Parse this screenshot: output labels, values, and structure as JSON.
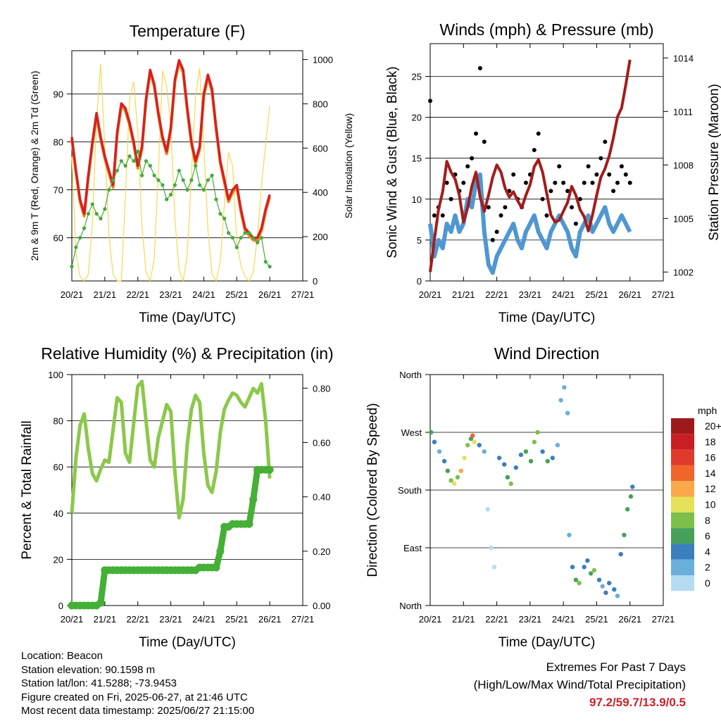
{
  "colors": {
    "temp_red": "#d62020",
    "temp_orange": "#f28a1e",
    "dewpoint_green": "#44aa3c",
    "solar_yellow": "#f5d442",
    "wind_blue": "#4f97d2",
    "gust_black": "#000000",
    "pressure_maroon": "#a31c1c",
    "rh_green": "#8cc84b",
    "precip_green": "#44b035",
    "extremes_red": "#cc2229"
  },
  "time_ticks": [
    "20/21",
    "21/21",
    "22/21",
    "23/21",
    "24/21",
    "25/21",
    "26/21",
    "27/21"
  ],
  "chart_data": [
    {
      "type": "line",
      "title": "Temperature (F)",
      "xlabel": "Time (Day/UTC)",
      "ylabel": "2m & 9m T (Red, Orange) & 2m Td (Green)",
      "y2label": "Solar Insolation (Yellow)",
      "ylim": [
        51,
        99
      ],
      "y2lim": [
        0,
        1040
      ],
      "yticks": [
        60,
        70,
        80,
        90
      ],
      "y2ticks": [
        0,
        200,
        400,
        600,
        800,
        1000
      ],
      "x": [
        20.875,
        21.0,
        21.125,
        21.25,
        21.375,
        21.5,
        21.625,
        21.75,
        21.875,
        22.0,
        22.125,
        22.25,
        22.375,
        22.5,
        22.625,
        22.75,
        22.875,
        23.0,
        23.125,
        23.25,
        23.375,
        23.5,
        23.625,
        23.75,
        23.875,
        24.0,
        24.125,
        24.25,
        24.375,
        24.5,
        24.625,
        24.75,
        24.875,
        25.0,
        25.125,
        25.25,
        25.375,
        25.5,
        25.625,
        25.75,
        25.875,
        26.0,
        26.125,
        26.25,
        26.375,
        26.5,
        26.625,
        26.75,
        26.875
      ],
      "series": [
        {
          "name": "2m T",
          "values": [
            81,
            74,
            68,
            65,
            73,
            80,
            86,
            81,
            77,
            74,
            71,
            82,
            88,
            87,
            84,
            80,
            75,
            79,
            89,
            95,
            92,
            86,
            81,
            78,
            83,
            93,
            97,
            95,
            87,
            80,
            76,
            79,
            90,
            94,
            91,
            83,
            76,
            72,
            68,
            70,
            71,
            66,
            62,
            61,
            60,
            60,
            62,
            66,
            69
          ]
        },
        {
          "name": "9m T",
          "values": [
            80.5,
            73.5,
            67.5,
            64.5,
            72.5,
            79.5,
            85.5,
            80.5,
            76.5,
            73.5,
            70.5,
            81.5,
            87.5,
            86.5,
            83.5,
            79.5,
            74.5,
            78.5,
            88.5,
            94.5,
            91.5,
            85.5,
            80.5,
            77.5,
            82.5,
            92.5,
            96.5,
            94.5,
            86.5,
            79.5,
            75.5,
            78.5,
            89.5,
            93.5,
            90.5,
            82.5,
            75.5,
            71.5,
            67.5,
            69.5,
            70.5,
            65.5,
            61.5,
            60.5,
            59.5,
            59.5,
            61.5,
            65.5,
            68.5
          ]
        },
        {
          "name": "2m Td",
          "values": [
            54,
            58,
            60,
            62,
            65,
            67,
            65,
            64,
            66,
            70,
            72,
            74,
            76,
            75,
            77,
            76,
            78,
            73,
            76,
            75,
            73,
            72,
            71,
            68,
            69,
            71,
            74,
            72,
            70,
            72,
            75,
            71,
            70,
            72,
            73,
            68,
            65,
            64,
            61,
            60,
            58,
            60,
            61,
            61,
            60,
            59,
            60,
            55,
            54
          ]
        },
        {
          "name": "Solar Insolation",
          "values": [
            560,
            120,
            20,
            0,
            30,
            260,
            720,
            980,
            600,
            210,
            30,
            0,
            0,
            380,
            820,
            900,
            670,
            250,
            40,
            0,
            100,
            500,
            950,
            880,
            700,
            280,
            50,
            0,
            120,
            480,
            830,
            960,
            620,
            230,
            30,
            0,
            90,
            350,
            580,
            520,
            180,
            70,
            20,
            0,
            40,
            200,
            430,
            620,
            790
          ]
        }
      ]
    },
    {
      "type": "line",
      "title": "Winds (mph) & Pressure (mb)",
      "xlabel": "Time (Day/UTC)",
      "ylabel": "Sonic Wind & Gust (Blue, Black)",
      "y2label": "Station Pressure (Maroon)",
      "ylim": [
        0,
        29
      ],
      "y2lim": [
        1001.5,
        1014.8
      ],
      "yticks": [
        0,
        5,
        10,
        15,
        20,
        25
      ],
      "y2ticks": [
        1002,
        1005,
        1008,
        1011,
        1014
      ],
      "x": [
        20.875,
        21.0,
        21.125,
        21.25,
        21.375,
        21.5,
        21.625,
        21.75,
        21.875,
        22.0,
        22.125,
        22.25,
        22.375,
        22.5,
        22.625,
        22.75,
        22.875,
        23.0,
        23.125,
        23.25,
        23.375,
        23.5,
        23.625,
        23.75,
        23.875,
        24.0,
        24.125,
        24.25,
        24.375,
        24.5,
        24.625,
        24.75,
        24.875,
        25.0,
        25.125,
        25.25,
        25.375,
        25.5,
        25.625,
        25.75,
        25.875,
        26.0,
        26.125,
        26.25,
        26.375,
        26.5,
        26.625,
        26.75,
        26.875
      ],
      "series": [
        {
          "name": "Sonic Wind",
          "values": [
            7,
            3,
            5,
            4,
            7,
            6,
            8,
            6,
            7,
            10,
            9,
            12,
            13,
            6,
            2,
            1,
            3,
            4,
            5,
            6,
            7,
            5,
            4,
            6,
            7,
            8,
            6,
            5,
            4,
            6,
            7,
            8,
            7,
            6,
            4,
            3,
            6,
            7,
            8,
            6,
            7,
            8,
            9,
            7,
            6,
            7,
            8,
            7,
            6
          ]
        },
        {
          "name": "Gust",
          "values": [
            22,
            8,
            9,
            8,
            12,
            10,
            13,
            11,
            12,
            14,
            15,
            18,
            26,
            17,
            9,
            5,
            6,
            8,
            9,
            11,
            13,
            10,
            9,
            12,
            13,
            16,
            18,
            10,
            8,
            11,
            12,
            14,
            12,
            11,
            9,
            7,
            10,
            12,
            14,
            12,
            13,
            15,
            17,
            13,
            11,
            12,
            14,
            13,
            12
          ]
        },
        {
          "name": "Station Pressure",
          "values": [
            1002.0,
            1003.8,
            1005.5,
            1006.5,
            1008.2,
            1007.6,
            1007.2,
            1006.3,
            1004.8,
            1005.6,
            1006.8,
            1007.6,
            1006.2,
            1005.4,
            1006.3,
            1007.3,
            1008.0,
            1007.6,
            1006.7,
            1006.2,
            1006.5,
            1006.0,
            1005.6,
            1006.3,
            1006.9,
            1007.9,
            1008.3,
            1007.6,
            1006.4,
            1005.2,
            1004.8,
            1004.9,
            1005.4,
            1005.9,
            1006.8,
            1006.3,
            1005.5,
            1005.1,
            1004.3,
            1005.2,
            1006.3,
            1007.3,
            1007.8,
            1008.5,
            1009.5,
            1010.7,
            1011.2,
            1012.5,
            1013.9
          ]
        }
      ]
    },
    {
      "type": "line",
      "title": "Relative Humidity (%) & Precipitation (in)",
      "xlabel": "Time (Day/UTC)",
      "ylabel": "Percent & Total Rainfall",
      "ylim": [
        0,
        100
      ],
      "y2lim": [
        0,
        0.85
      ],
      "yticks": [
        0,
        20,
        40,
        60,
        80,
        100
      ],
      "y2ticks": [
        "0.00",
        "0.20",
        "0.40",
        "0.60",
        "0.80"
      ],
      "x": [
        20.875,
        21.0,
        21.125,
        21.25,
        21.375,
        21.5,
        21.625,
        21.75,
        21.875,
        22.0,
        22.125,
        22.25,
        22.375,
        22.5,
        22.625,
        22.75,
        22.875,
        23.0,
        23.125,
        23.25,
        23.375,
        23.5,
        23.625,
        23.75,
        23.875,
        24.0,
        24.125,
        24.25,
        24.375,
        24.5,
        24.625,
        24.75,
        24.875,
        25.0,
        25.125,
        25.25,
        25.375,
        25.5,
        25.625,
        25.75,
        25.875,
        26.0,
        26.125,
        26.25,
        26.375,
        26.5,
        26.625,
        26.75,
        26.875
      ],
      "series": [
        {
          "name": "Relative Humidity",
          "values": [
            40,
            64,
            78,
            83,
            68,
            57,
            54,
            59,
            63,
            62,
            76,
            90,
            88,
            66,
            62,
            79,
            95,
            97,
            80,
            63,
            60,
            73,
            80,
            87,
            84,
            58,
            38,
            46,
            70,
            85,
            91,
            88,
            66,
            52,
            49,
            58,
            75,
            85,
            89,
            92,
            91,
            88,
            86,
            90,
            94,
            92,
            96,
            80,
            55
          ]
        },
        {
          "name": "Total Rainfall",
          "values": [
            0,
            0,
            0,
            0,
            0,
            0,
            0,
            0.01,
            0.13,
            0.13,
            0.13,
            0.13,
            0.13,
            0.13,
            0.13,
            0.13,
            0.13,
            0.13,
            0.13,
            0.13,
            0.13,
            0.13,
            0.13,
            0.13,
            0.13,
            0.13,
            0.13,
            0.13,
            0.13,
            0.13,
            0.13,
            0.14,
            0.14,
            0.14,
            0.14,
            0.14,
            0.2,
            0.29,
            0.29,
            0.3,
            0.3,
            0.3,
            0.3,
            0.3,
            0.39,
            0.5,
            0.5,
            0.5,
            0.5
          ]
        }
      ]
    },
    {
      "type": "scatter",
      "title": "Wind Direction",
      "xlabel": "Time (Day/UTC)",
      "ylabel": "Direction (Colored By Speed)",
      "ylim": [
        0,
        360
      ],
      "yticks": [
        "North",
        "East",
        "South",
        "West",
        "North"
      ],
      "ytick_values": [
        0,
        90,
        180,
        270,
        360
      ],
      "legend_title": "mph",
      "legend_labels": [
        "20+",
        "18",
        "16",
        "14",
        "12",
        "10",
        "8",
        "6",
        "4",
        "2",
        "0"
      ],
      "legend_colors": [
        "#9e1a1a",
        "#c71f23",
        "#e03a2c",
        "#f0652a",
        "#f9a84b",
        "#e4e158",
        "#7cbf4a",
        "#46a05a",
        "#3b7fbd",
        "#6aaedc",
        "#b6dcf2"
      ],
      "points": [
        {
          "x": 20.9,
          "dir": 270,
          "speed": 6
        },
        {
          "x": 21.0,
          "dir": 255,
          "speed": 4
        },
        {
          "x": 21.15,
          "dir": 240,
          "speed": 3
        },
        {
          "x": 21.3,
          "dir": 225,
          "speed": 4
        },
        {
          "x": 21.4,
          "dir": 210,
          "speed": 6
        },
        {
          "x": 21.5,
          "dir": 195,
          "speed": 8
        },
        {
          "x": 21.6,
          "dir": 190,
          "speed": 10
        },
        {
          "x": 21.7,
          "dir": 200,
          "speed": 9
        },
        {
          "x": 21.8,
          "dir": 210,
          "speed": 12
        },
        {
          "x": 21.9,
          "dir": 230,
          "speed": 11
        },
        {
          "x": 22.0,
          "dir": 250,
          "speed": 8
        },
        {
          "x": 22.1,
          "dir": 260,
          "speed": 6
        },
        {
          "x": 22.15,
          "dir": 265,
          "speed": 14
        },
        {
          "x": 22.2,
          "dir": 255,
          "speed": 10
        },
        {
          "x": 22.35,
          "dir": 250,
          "speed": 4
        },
        {
          "x": 22.5,
          "dir": 240,
          "speed": 3
        },
        {
          "x": 22.6,
          "dir": 150,
          "speed": 1
        },
        {
          "x": 22.7,
          "dir": 90,
          "speed": 1
        },
        {
          "x": 22.8,
          "dir": 60,
          "speed": 1
        },
        {
          "x": 22.95,
          "dir": 230,
          "speed": 4
        },
        {
          "x": 23.1,
          "dir": 220,
          "speed": 5
        },
        {
          "x": 23.2,
          "dir": 200,
          "speed": 7
        },
        {
          "x": 23.3,
          "dir": 190,
          "speed": 8
        },
        {
          "x": 23.45,
          "dir": 215,
          "speed": 4
        },
        {
          "x": 23.6,
          "dir": 235,
          "speed": 5
        },
        {
          "x": 23.75,
          "dir": 240,
          "speed": 6
        },
        {
          "x": 23.9,
          "dir": 225,
          "speed": 7
        },
        {
          "x": 24.0,
          "dir": 255,
          "speed": 8
        },
        {
          "x": 24.1,
          "dir": 270,
          "speed": 9
        },
        {
          "x": 24.25,
          "dir": 240,
          "speed": 4
        },
        {
          "x": 24.4,
          "dir": 225,
          "speed": 6
        },
        {
          "x": 24.55,
          "dir": 230,
          "speed": 4
        },
        {
          "x": 24.7,
          "dir": 250,
          "speed": 3
        },
        {
          "x": 24.8,
          "dir": 320,
          "speed": 3
        },
        {
          "x": 24.9,
          "dir": 340,
          "speed": 2
        },
        {
          "x": 25.0,
          "dir": 300,
          "speed": 2
        },
        {
          "x": 25.05,
          "dir": 110,
          "speed": 3
        },
        {
          "x": 25.15,
          "dir": 60,
          "speed": 4
        },
        {
          "x": 25.25,
          "dir": 40,
          "speed": 6
        },
        {
          "x": 25.35,
          "dir": 35,
          "speed": 8
        },
        {
          "x": 25.5,
          "dir": 60,
          "speed": 5
        },
        {
          "x": 25.6,
          "dir": 70,
          "speed": 4
        },
        {
          "x": 25.7,
          "dir": 50,
          "speed": 6
        },
        {
          "x": 25.8,
          "dir": 55,
          "speed": 8
        },
        {
          "x": 25.95,
          "dir": 40,
          "speed": 4
        },
        {
          "x": 26.05,
          "dir": 30,
          "speed": 3
        },
        {
          "x": 26.15,
          "dir": 20,
          "speed": 4
        },
        {
          "x": 26.25,
          "dir": 35,
          "speed": 5
        },
        {
          "x": 26.4,
          "dir": 25,
          "speed": 4
        },
        {
          "x": 26.5,
          "dir": 15,
          "speed": 3
        },
        {
          "x": 26.6,
          "dir": 80,
          "speed": 5
        },
        {
          "x": 26.7,
          "dir": 110,
          "speed": 6
        },
        {
          "x": 26.8,
          "dir": 150,
          "speed": 7
        },
        {
          "x": 26.9,
          "dir": 170,
          "speed": 6
        },
        {
          "x": 26.95,
          "dir": 185,
          "speed": 5
        }
      ]
    }
  ],
  "info": {
    "location": "Location: Beacon",
    "elevation": "Station elevation: 90.1598 m",
    "latlon": "Station lat/lon: 41.5288; -73.9453",
    "created": "Figure created on Fri, 2025-06-27, at 21:46 UTC",
    "timestamp": "Most recent data timestamp: 2025/06/27 21:15:00"
  },
  "extremes": {
    "title": "Extremes For Past 7 Days",
    "subtitle": "(High/Low/Max Wind/Total Precipitation)",
    "values": "97.2/59.7/13.9/0.5"
  }
}
